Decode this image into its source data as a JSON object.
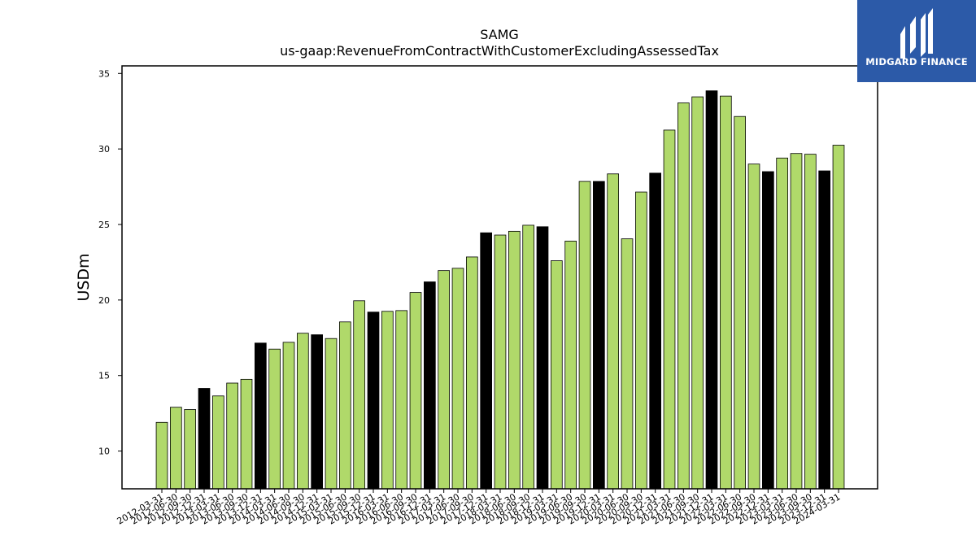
{
  "chart_data": {
    "type": "bar",
    "title": "SAMG",
    "subtitle": "us-gaap:RevenueFromContractWithCustomerExcludingAssessedTax",
    "xlabel": "",
    "ylabel": "USDm",
    "ylim": [
      7.5,
      35.5
    ],
    "yticks": [
      10,
      15,
      20,
      25,
      30,
      35
    ],
    "grid": false,
    "colors": {
      "quarter": "#b0d96a",
      "year_end": "#000000",
      "edge": "#000000"
    },
    "categories": [
      "2012-03-31",
      "2012-06-30",
      "2012-09-30",
      "2012-12-31",
      "2013-03-31",
      "2013-06-30",
      "2013-09-30",
      "2013-12-31",
      "2014-03-31",
      "2014-06-30",
      "2014-09-30",
      "2014-12-31",
      "2015-03-31",
      "2015-06-30",
      "2015-09-30",
      "2015-12-31",
      "2016-03-31",
      "2016-06-30",
      "2016-09-30",
      "2016-12-31",
      "2017-03-31",
      "2017-06-30",
      "2017-09-30",
      "2017-12-31",
      "2018-03-31",
      "2018-06-30",
      "2018-09-30",
      "2018-12-31",
      "2019-03-31",
      "2019-06-30",
      "2019-09-30",
      "2019-12-31",
      "2020-03-31",
      "2020-06-30",
      "2020-09-30",
      "2020-12-31",
      "2021-03-31",
      "2021-06-30",
      "2021-09-30",
      "2021-12-31",
      "2022-03-31",
      "2022-06-30",
      "2022-09-30",
      "2022-12-31",
      "2023-03-31",
      "2023-06-30",
      "2023-09-30",
      "2023-12-31",
      "2024-03-31"
    ],
    "values": [
      11.9,
      12.9,
      12.75,
      14.15,
      13.65,
      14.5,
      14.75,
      17.15,
      16.75,
      17.2,
      17.8,
      17.7,
      17.45,
      18.55,
      19.95,
      19.2,
      19.25,
      19.3,
      20.5,
      21.2,
      21.95,
      22.1,
      22.85,
      24.45,
      24.3,
      24.55,
      24.95,
      24.85,
      22.6,
      23.9,
      27.85,
      27.85,
      28.35,
      24.05,
      27.15,
      28.4,
      31.25,
      33.05,
      33.45,
      33.85,
      33.5,
      32.15,
      29.0,
      28.5,
      29.4,
      29.7,
      29.65,
      28.55,
      30.25
    ],
    "year_end": [
      false,
      false,
      false,
      true,
      false,
      false,
      false,
      true,
      false,
      false,
      false,
      true,
      false,
      false,
      false,
      true,
      false,
      false,
      false,
      true,
      false,
      false,
      false,
      true,
      false,
      false,
      false,
      true,
      false,
      false,
      false,
      true,
      false,
      false,
      false,
      true,
      false,
      false,
      false,
      true,
      false,
      false,
      false,
      true,
      false,
      false,
      false,
      true,
      false
    ]
  },
  "logo": {
    "text": "MIDGARD FINANCE",
    "icon": "midgard-logo-icon"
  }
}
